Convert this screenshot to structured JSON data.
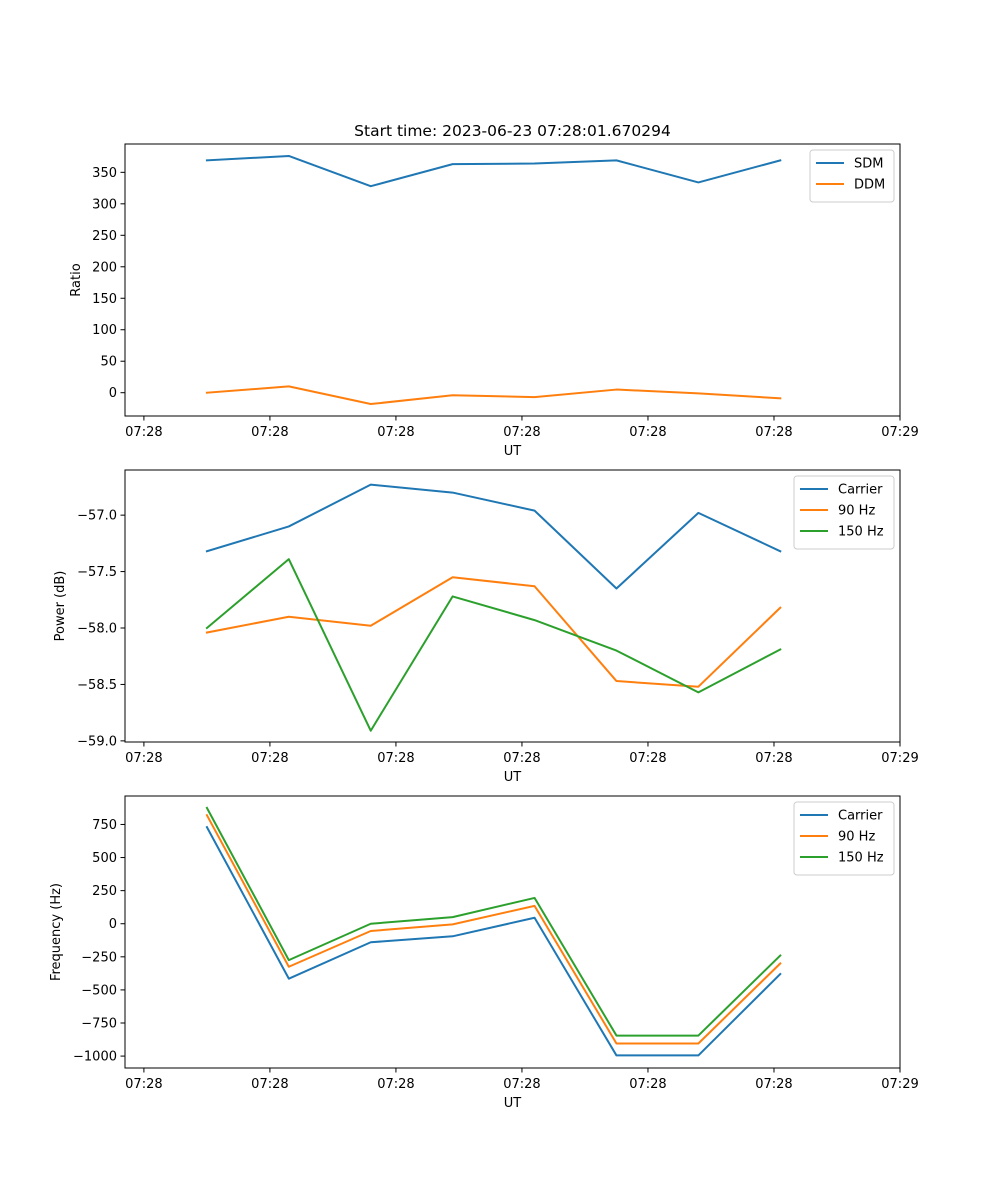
{
  "figure": {
    "title": "Start time: 2023-06-23 07:28:01.670294"
  },
  "chart_data": [
    {
      "type": "line",
      "title": "Start time: 2023-06-23 07:28:01.670294",
      "xlabel": "UT",
      "ylabel": "Ratio",
      "x_tick_labels": [
        "07:28",
        "07:28",
        "07:28",
        "07:28",
        "07:28",
        "07:28",
        "07:29"
      ],
      "x_tick_positions": [
        0,
        1,
        2,
        3,
        4,
        5,
        6
      ],
      "xlim": [
        -0.15,
        6.0
      ],
      "x": [
        0.5,
        1.15,
        1.8,
        2.45,
        3.1,
        3.75,
        4.4,
        5.05
      ],
      "ylim": [
        -37,
        395
      ],
      "yticks": [
        0,
        50,
        100,
        150,
        200,
        250,
        300,
        350
      ],
      "grid": false,
      "legend_position": "upper right",
      "series": [
        {
          "name": "SDM",
          "color": "#1f77b4",
          "values": [
            369,
            376,
            328,
            363,
            364,
            369,
            334,
            369
          ]
        },
        {
          "name": "DDM",
          "color": "#ff7f0e",
          "values": [
            0,
            10,
            -18,
            -4,
            -7,
            5,
            -1,
            -9
          ]
        }
      ]
    },
    {
      "type": "line",
      "title": "",
      "xlabel": "UT",
      "ylabel": "Power (dB)",
      "x_tick_labels": [
        "07:28",
        "07:28",
        "07:28",
        "07:28",
        "07:28",
        "07:28",
        "07:29"
      ],
      "x_tick_positions": [
        0,
        1,
        2,
        3,
        4,
        5,
        6
      ],
      "xlim": [
        -0.15,
        6.0
      ],
      "x": [
        0.5,
        1.15,
        1.8,
        2.45,
        3.1,
        3.75,
        4.4,
        5.05
      ],
      "ylim": [
        -59.01,
        -56.6
      ],
      "yticks": [
        -59.0,
        -58.5,
        -58.0,
        -57.5,
        -57.0
      ],
      "ytick_labels": [
        "−59.0",
        "−58.5",
        "−58.0",
        "−57.5",
        "−57.0"
      ],
      "grid": false,
      "legend_position": "upper right",
      "series": [
        {
          "name": "Carrier",
          "color": "#1f77b4",
          "values": [
            -57.32,
            -57.1,
            -56.73,
            -56.8,
            -56.96,
            -57.65,
            -56.98,
            -57.32
          ]
        },
        {
          "name": "90 Hz",
          "color": "#ff7f0e",
          "values": [
            -58.04,
            -57.9,
            -57.98,
            -57.55,
            -57.63,
            -58.47,
            -58.52,
            -57.82
          ]
        },
        {
          "name": "150 Hz",
          "color": "#2ca02c",
          "values": [
            -58.0,
            -57.39,
            -58.91,
            -57.72,
            -57.93,
            -58.2,
            -58.57,
            -58.19
          ]
        }
      ]
    },
    {
      "type": "line",
      "title": "",
      "xlabel": "UT",
      "ylabel": "Frequency (Hz)",
      "x_tick_labels": [
        "07:28",
        "07:28",
        "07:28",
        "07:28",
        "07:28",
        "07:28",
        "07:29"
      ],
      "x_tick_positions": [
        0,
        1,
        2,
        3,
        4,
        5,
        6
      ],
      "xlim": [
        -0.15,
        6.0
      ],
      "x": [
        0.5,
        1.15,
        1.8,
        2.45,
        3.1,
        3.75,
        4.4,
        5.05
      ],
      "ylim": [
        -1090,
        965
      ],
      "yticks": [
        -1000,
        -750,
        -500,
        -250,
        0,
        250,
        500,
        750
      ],
      "ytick_labels": [
        "−1000",
        "−750",
        "−500",
        "−250",
        "0",
        "250",
        "500",
        "750"
      ],
      "grid": false,
      "legend_position": "upper right",
      "series": [
        {
          "name": "Carrier",
          "color": "#1f77b4",
          "values": [
            730,
            -415,
            -140,
            -95,
            45,
            -995,
            -995,
            -380
          ]
        },
        {
          "name": "90 Hz",
          "color": "#ff7f0e",
          "values": [
            820,
            -325,
            -55,
            -5,
            135,
            -905,
            -905,
            -300
          ]
        },
        {
          "name": "150 Hz",
          "color": "#2ca02c",
          "values": [
            875,
            -275,
            0,
            50,
            195,
            -845,
            -845,
            -240
          ]
        }
      ]
    }
  ]
}
